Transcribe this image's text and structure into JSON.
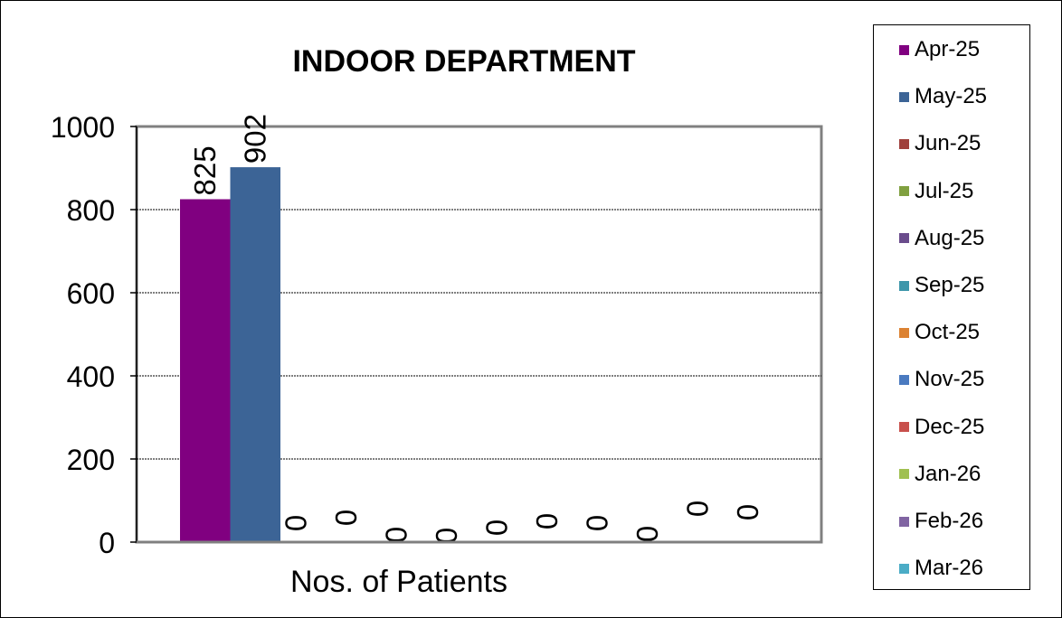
{
  "chart_data": {
    "type": "bar",
    "title": "INDOOR DEPARTMENT",
    "xlabel": "Nos. of Patients",
    "ylabel": "",
    "categories": [
      "Nos. of Patients"
    ],
    "ylim": [
      0,
      1000
    ],
    "yticks": [
      0,
      200,
      400,
      600,
      800,
      1000
    ],
    "grid": true,
    "legend_position": "right",
    "series": [
      {
        "name": "Apr-25",
        "values": [
          825
        ],
        "label": "825",
        "color": "#800080"
      },
      {
        "name": "May-25",
        "values": [
          902
        ],
        "label": "902",
        "color": "#3C6496"
      },
      {
        "name": "Jun-25",
        "values": [
          0
        ],
        "label": "0",
        "color": "#A0403C"
      },
      {
        "name": "Jul-25",
        "values": [
          0
        ],
        "label": "0",
        "color": "#80A040"
      },
      {
        "name": "Aug-25",
        "values": [
          0
        ],
        "label": "0",
        "color": "#6A4C8C"
      },
      {
        "name": "Sep-25",
        "values": [
          0
        ],
        "label": "0",
        "color": "#3C96AA"
      },
      {
        "name": "Oct-25",
        "values": [
          0
        ],
        "label": "0",
        "color": "#DC8232"
      },
      {
        "name": "Nov-25",
        "values": [
          0
        ],
        "label": "0",
        "color": "#4A7AC0"
      },
      {
        "name": "Dec-25",
        "values": [
          0
        ],
        "label": "0",
        "color": "#C8504C"
      },
      {
        "name": "Jan-26",
        "values": [
          0
        ],
        "label": "0",
        "color": "#A0C050"
      },
      {
        "name": "Feb-26",
        "values": [
          0
        ],
        "label": "0",
        "color": "#8064A2"
      },
      {
        "name": "Mar-26",
        "values": [
          0
        ],
        "label": "0",
        "color": "#4BACC6"
      }
    ]
  }
}
